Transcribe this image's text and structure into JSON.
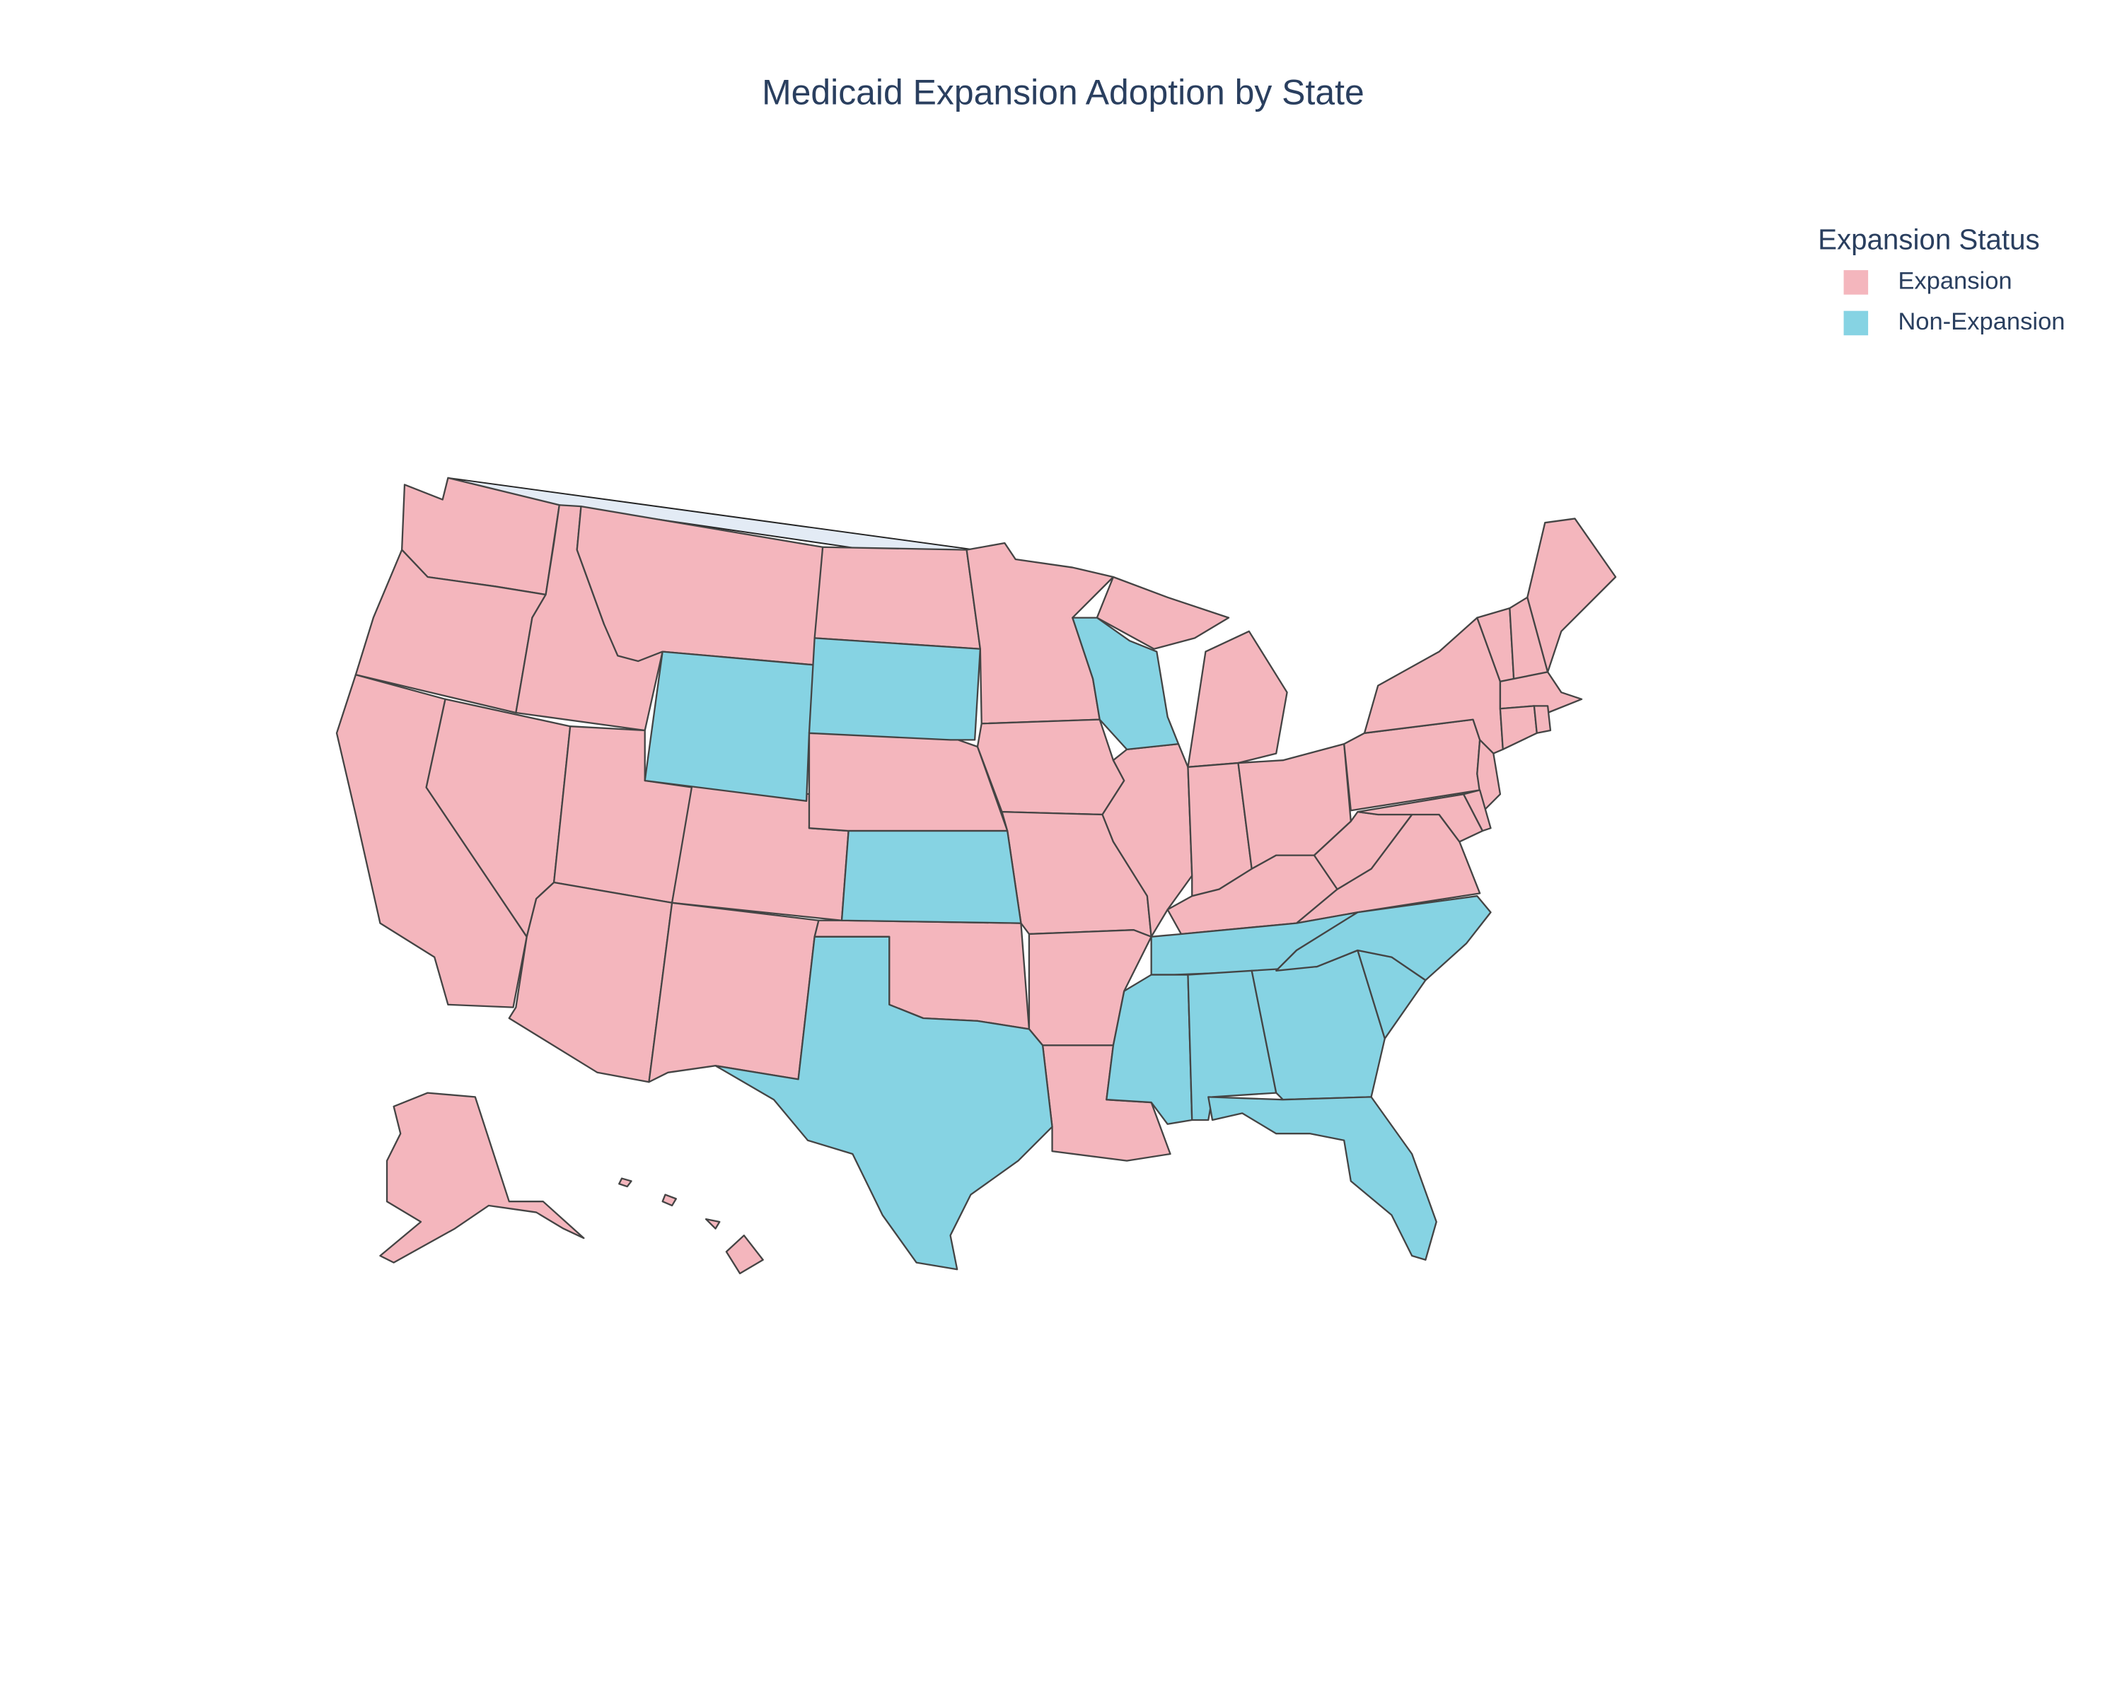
{
  "chart_data": {
    "type": "choropleth",
    "title": "Medicaid Expansion Adoption by State",
    "legend_title": "Expansion Status",
    "legend_position": "top-right",
    "series": [
      {
        "name": "Expansion",
        "color": "#f4b6bd",
        "locations": [
          "WA",
          "OR",
          "CA",
          "ID",
          "NV",
          "MT",
          "UT",
          "CO",
          "AZ",
          "NM",
          "ND",
          "NE",
          "OK",
          "MN",
          "IA",
          "MO",
          "AR",
          "LA",
          "IL",
          "MI",
          "IN",
          "OH",
          "KY",
          "VA",
          "WV",
          "PA",
          "NY",
          "NJ",
          "MD",
          "DE",
          "VT",
          "NH",
          "ME",
          "MA",
          "CT",
          "RI",
          "AK",
          "HI"
        ]
      },
      {
        "name": "Non-Expansion",
        "color": "#86d3e3",
        "locations": [
          "WY",
          "SD",
          "KS",
          "TX",
          "WI",
          "TN",
          "MS",
          "AL",
          "GA",
          "SC",
          "NC",
          "FL"
        ]
      }
    ]
  }
}
